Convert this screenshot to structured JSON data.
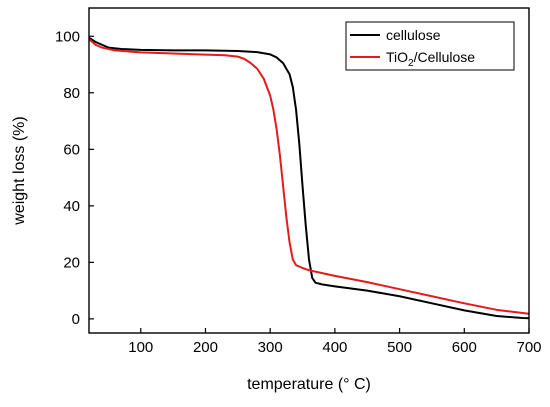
{
  "chart_data": {
    "type": "line",
    "xlabel": "temperature (° C)",
    "ylabel": "weight loss (%)",
    "xlim": [
      20,
      700
    ],
    "ylim": [
      -5,
      110
    ],
    "xticks": [
      100,
      200,
      300,
      400,
      500,
      600,
      700
    ],
    "yticks": [
      0,
      20,
      40,
      60,
      80,
      100
    ],
    "grid": false,
    "legend_position": "top-right",
    "series": [
      {
        "name": "cellulose",
        "legend_main": "cellulose",
        "legend_sub": "",
        "legend_tail": "",
        "color": "#000000",
        "points": [
          [
            20,
            99.5
          ],
          [
            30,
            98
          ],
          [
            40,
            97
          ],
          [
            50,
            96
          ],
          [
            70,
            95.5
          ],
          [
            100,
            95.2
          ],
          [
            150,
            95.0
          ],
          [
            200,
            95.0
          ],
          [
            250,
            94.8
          ],
          [
            280,
            94.4
          ],
          [
            300,
            93.6
          ],
          [
            310,
            92.5
          ],
          [
            320,
            90.5
          ],
          [
            330,
            86.5
          ],
          [
            335,
            82
          ],
          [
            340,
            74
          ],
          [
            345,
            62
          ],
          [
            350,
            47
          ],
          [
            355,
            33
          ],
          [
            360,
            21
          ],
          [
            365,
            14.5
          ],
          [
            370,
            12.8
          ],
          [
            380,
            12.2
          ],
          [
            400,
            11.5
          ],
          [
            450,
            10.0
          ],
          [
            500,
            8.0
          ],
          [
            550,
            5.5
          ],
          [
            600,
            3.0
          ],
          [
            650,
            1.0
          ],
          [
            690,
            0.3
          ],
          [
            700,
            0.2
          ]
        ]
      },
      {
        "name": "TiO2/Cellulose",
        "legend_main": "TiO",
        "legend_sub": "2",
        "legend_tail": "/Cellulose",
        "color": "#e41a1c",
        "points": [
          [
            20,
            99.0
          ],
          [
            30,
            97
          ],
          [
            40,
            96
          ],
          [
            60,
            95
          ],
          [
            100,
            94.3
          ],
          [
            150,
            93.9
          ],
          [
            200,
            93.5
          ],
          [
            230,
            93.3
          ],
          [
            250,
            92.8
          ],
          [
            260,
            92.0
          ],
          [
            270,
            90.5
          ],
          [
            280,
            88.5
          ],
          [
            290,
            85
          ],
          [
            300,
            79
          ],
          [
            305,
            74
          ],
          [
            310,
            67
          ],
          [
            315,
            58
          ],
          [
            320,
            47
          ],
          [
            325,
            36
          ],
          [
            330,
            27
          ],
          [
            335,
            21
          ],
          [
            340,
            19
          ],
          [
            350,
            18
          ],
          [
            360,
            17.2
          ],
          [
            400,
            15.2
          ],
          [
            450,
            13.0
          ],
          [
            500,
            10.5
          ],
          [
            550,
            8.0
          ],
          [
            600,
            5.5
          ],
          [
            650,
            3.2
          ],
          [
            700,
            1.8
          ]
        ]
      }
    ]
  }
}
